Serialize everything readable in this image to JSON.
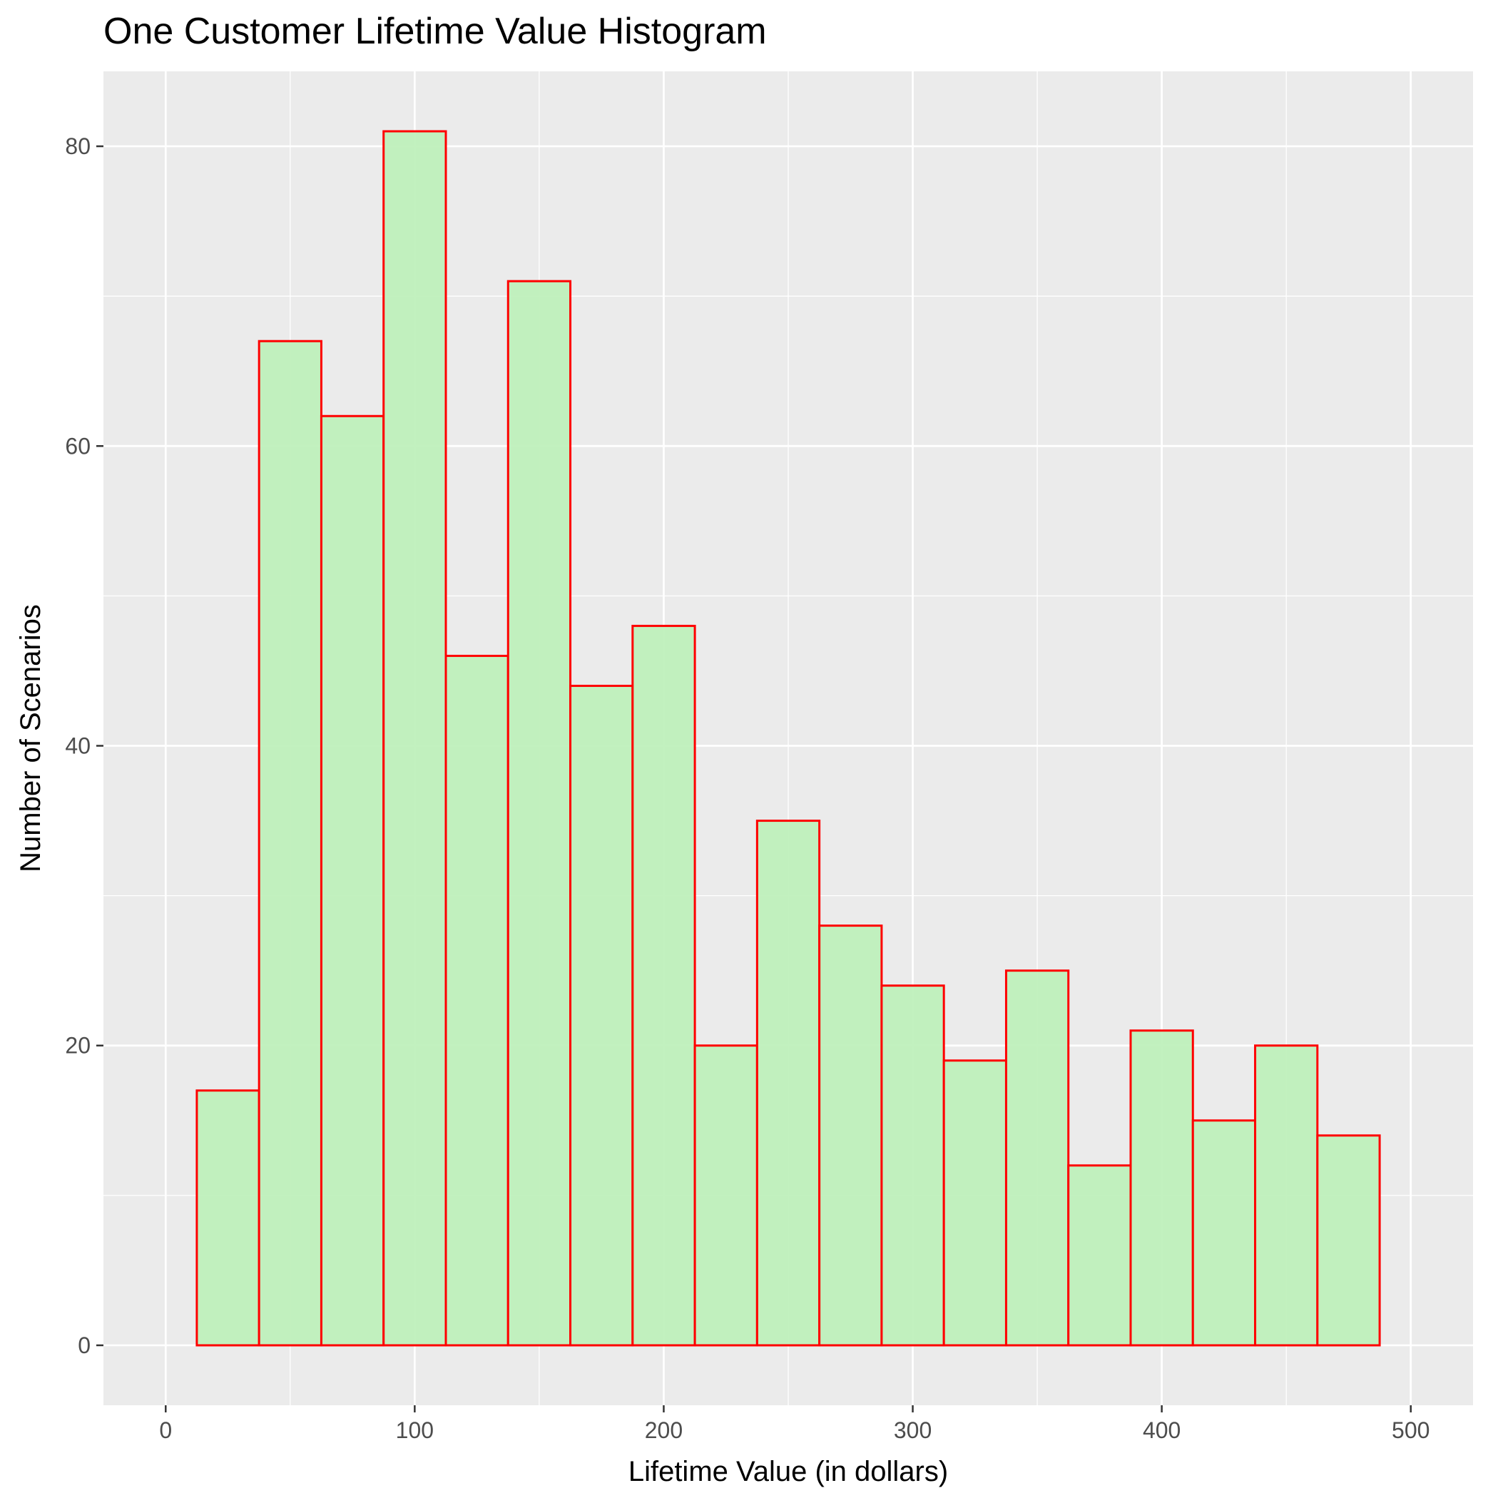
{
  "chart_data": {
    "type": "bar",
    "title": "One Customer Lifetime Value Histogram",
    "xlabel": "Lifetime Value (in dollars)",
    "ylabel": "Number of Scenarios",
    "xlim": [
      -25,
      525
    ],
    "ylim": [
      -4,
      85
    ],
    "x_ticks": [
      0,
      100,
      200,
      300,
      400,
      500
    ],
    "y_ticks": [
      0,
      20,
      40,
      60,
      80
    ],
    "x_tick_labels": [
      "0",
      "100",
      "200",
      "300",
      "400",
      "500"
    ],
    "y_tick_labels": [
      "0",
      "20",
      "40",
      "60",
      "80"
    ],
    "bin_width": 25,
    "bin_edges": [
      12.5,
      37.5,
      62.5,
      87.5,
      112.5,
      137.5,
      162.5,
      187.5,
      212.5,
      237.5,
      262.5,
      287.5,
      312.5,
      337.5,
      362.5,
      387.5,
      412.5,
      437.5,
      462.5,
      487.5
    ],
    "bin_centers": [
      25,
      50,
      75,
      100,
      125,
      150,
      175,
      200,
      225,
      250,
      275,
      300,
      325,
      350,
      375,
      400,
      425,
      450,
      475
    ],
    "values": [
      17,
      67,
      62,
      81,
      46,
      71,
      44,
      48,
      20,
      35,
      28,
      24,
      19,
      25,
      12,
      21,
      15,
      20,
      14
    ],
    "grid": true,
    "colors": {
      "panel_background": "#ebebeb",
      "grid": "#ffffff",
      "bar_fill": "#bff0bc",
      "bar_outline": "#ff0000"
    }
  }
}
